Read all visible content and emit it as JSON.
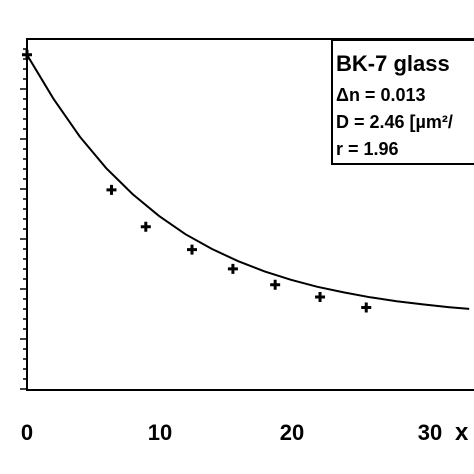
{
  "chart_data": {
    "type": "scatter",
    "title": "",
    "xlabel": "x",
    "ylabel": "",
    "xlim": [
      0,
      33.5
    ],
    "ylim": [
      0,
      1
    ],
    "x_ticks": [
      "0",
      "10",
      "20",
      "30"
    ],
    "grid": false,
    "legend_placement": "top-right",
    "legend": {
      "title": "BK-7 glass",
      "lines": [
        "Δn = 0.013",
        "D = 2.46 [µm²/",
        "r = 1.96"
      ]
    },
    "series": [
      {
        "kind": "points",
        "marker": "plus",
        "x": [
          0,
          6.4,
          9,
          12.5,
          15.6,
          18.8,
          22.2,
          25.7
        ],
        "y": [
          0.955,
          0.57,
          0.465,
          0.4,
          0.345,
          0.3,
          0.265,
          0.235
        ]
      },
      {
        "kind": "line",
        "x": [
          0,
          2,
          4,
          6,
          8,
          10,
          12,
          14,
          16,
          18,
          20,
          22,
          24,
          26,
          28,
          30,
          32,
          33.5
        ],
        "y": [
          0.955,
          0.83,
          0.722,
          0.632,
          0.558,
          0.496,
          0.444,
          0.402,
          0.367,
          0.338,
          0.314,
          0.294,
          0.278,
          0.264,
          0.253,
          0.244,
          0.236,
          0.231
        ]
      }
    ],
    "colors": {
      "axes": "#000000",
      "marks": "#000000",
      "background": "#ffffff"
    }
  }
}
